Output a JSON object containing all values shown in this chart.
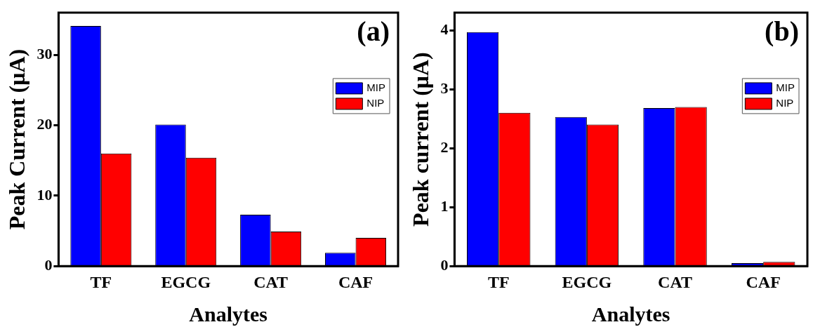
{
  "chart_data": [
    {
      "type": "bar",
      "annotations": [
        "(a)"
      ],
      "xlabel": "Analytes",
      "ylabel": "Peak Current (μA)",
      "categories": [
        "TF",
        "EGCG",
        "CAT",
        "CAF"
      ],
      "series": [
        {
          "name": "MIP",
          "color": "#0000ff",
          "values": [
            34.1,
            20.1,
            7.3,
            1.9
          ]
        },
        {
          "name": "NIP",
          "color": "#ff0000",
          "values": [
            16.0,
            15.4,
            4.9,
            4.0
          ]
        }
      ],
      "ylim": [
        0,
        36
      ],
      "yticks": [
        0,
        10,
        20,
        30
      ],
      "grid": false,
      "legend": "top right"
    },
    {
      "type": "bar",
      "annotations": [
        "(b)"
      ],
      "xlabel": "Analytes",
      "ylabel": "Peak current (μA)",
      "categories": [
        "TF",
        "EGCG",
        "CAT",
        "CAF"
      ],
      "series": [
        {
          "name": "MIP",
          "color": "#0000ff",
          "values": [
            3.97,
            2.53,
            2.68,
            0.05
          ]
        },
        {
          "name": "NIP",
          "color": "#ff0000",
          "values": [
            2.6,
            2.4,
            2.7,
            0.07
          ]
        }
      ],
      "ylim": [
        0,
        4.3
      ],
      "yticks": [
        0,
        1,
        2,
        3,
        4
      ],
      "grid": false,
      "legend": "top right"
    }
  ]
}
